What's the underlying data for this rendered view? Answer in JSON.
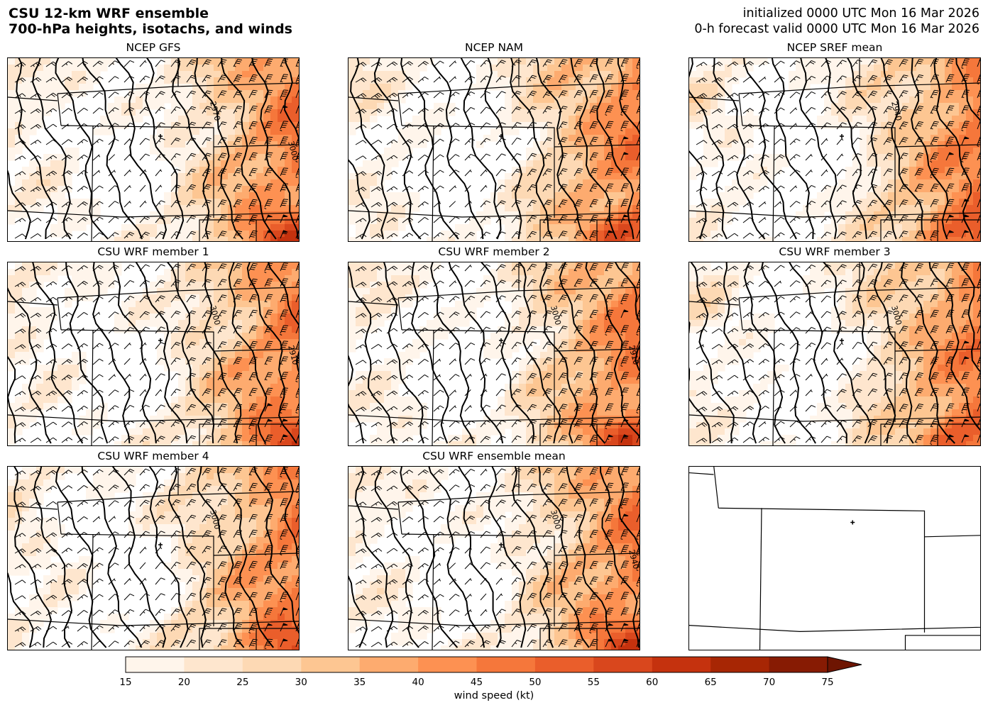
{
  "header": {
    "title_line1": "CSU 12-km WRF ensemble",
    "title_line2": "700-hPa heights, isotachs, and winds",
    "init_line": "initialized 0000 UTC Mon 16 Mar 2026",
    "valid_line": "0-h forecast valid 0000 UTC Mon 16 Mar 2026"
  },
  "panels": [
    {
      "title": "NCEP GFS",
      "contour_labels": [
        "2970",
        "3000"
      ]
    },
    {
      "title": "NCEP NAM",
      "contour_labels": []
    },
    {
      "title": "NCEP SREF mean",
      "contour_labels": [
        "2940"
      ]
    },
    {
      "title": "CSU WRF member 1",
      "contour_labels": [
        "3000",
        "2910"
      ]
    },
    {
      "title": "CSU WRF member 2",
      "contour_labels": [
        "3000",
        "2910"
      ]
    },
    {
      "title": "CSU WRF member 3",
      "contour_labels": [
        "3000"
      ]
    },
    {
      "title": "CSU WRF member 4",
      "contour_labels": [
        "3000"
      ]
    },
    {
      "title": "CSU WRF ensemble mean",
      "contour_labels": [
        "3000",
        "2940"
      ]
    },
    {
      "title": "",
      "contour_labels": []
    }
  ],
  "colorbar": {
    "label": "wind speed (kt)",
    "ticks": [
      "15",
      "20",
      "25",
      "30",
      "35",
      "40",
      "45",
      "50",
      "55",
      "60",
      "65",
      "70",
      "75"
    ],
    "colors": [
      "#fff5eb",
      "#fee6ce",
      "#fdd9b4",
      "#fdc692",
      "#fdab6f",
      "#fd9152",
      "#f5773b",
      "#ea5e2b",
      "#d9471d",
      "#c5320e",
      "#a72604",
      "#871b03",
      "#6e1502"
    ],
    "extend": "max"
  },
  "chart_data": {
    "type": "heatmap",
    "variable": "700-hPa wind speed (kt)",
    "contour_variable": "700-hPa geopotential height",
    "scale_min": 15,
    "scale_max": 75,
    "scale_step": 5
  }
}
